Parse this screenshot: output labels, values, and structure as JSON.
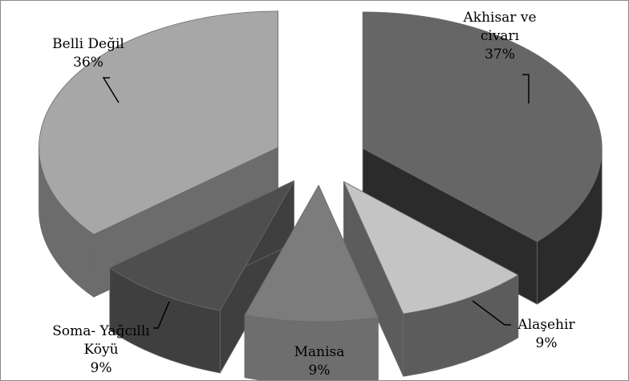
{
  "chart_data": {
    "type": "pie",
    "style": "3d-exploded",
    "title": "",
    "legend": "none",
    "slices": [
      {
        "label_lines": [
          "Akhisar ve",
          "civarı"
        ],
        "percent_label": "37%",
        "value": 37,
        "color": "#666666",
        "side_color": "#2b2b2b"
      },
      {
        "label_lines": [
          "Alaşehir"
        ],
        "percent_label": "9%",
        "value": 9,
        "color": "#c4c4c4",
        "side_color": "#5c5c5c"
      },
      {
        "label_lines": [
          "Manisa"
        ],
        "percent_label": "9%",
        "value": 9,
        "color": "#7c7c7c",
        "side_color": "#6e6e6e"
      },
      {
        "label_lines": [
          "Soma- Yağcıllı",
          "Köyü"
        ],
        "percent_label": "9%",
        "value": 9,
        "color": "#4e4e4e",
        "side_color": "#3f3f3f"
      },
      {
        "label_lines": [
          "Belli Değil"
        ],
        "percent_label": "36%",
        "value": 36,
        "color": "#a7a7a7",
        "side_color": "#6c6c6c"
      }
    ]
  }
}
